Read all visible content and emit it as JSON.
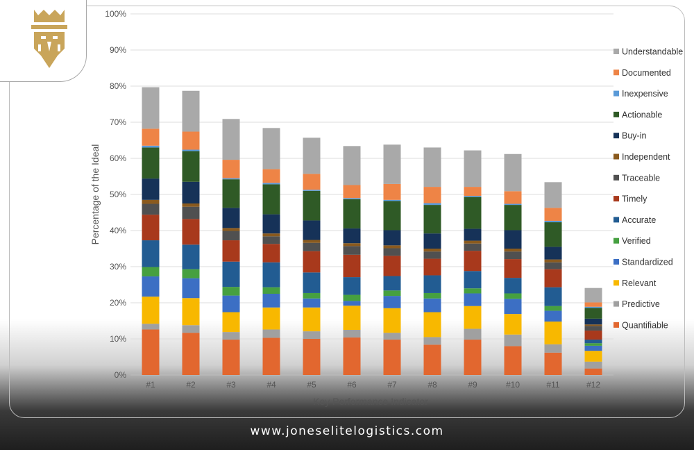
{
  "brand": {
    "website": "www.joneselitelogistics.com",
    "logo_icon": "lion-crown-logo-icon",
    "logo_color": "#c9a55a"
  },
  "chart_data": {
    "type": "bar",
    "stacked": true,
    "xlabel": "Key Performance Indicator",
    "ylabel": "Percentage of the Ideal",
    "ylim": [
      0,
      100
    ],
    "yticks": [
      "0%",
      "10%",
      "20%",
      "30%",
      "40%",
      "50%",
      "60%",
      "70%",
      "80%",
      "90%",
      "100%"
    ],
    "grid": true,
    "legend_position": "right",
    "categories": [
      "#1",
      "#2",
      "#3",
      "#4",
      "#5",
      "#6",
      "#7",
      "#8",
      "#9",
      "#10",
      "#11",
      "#12"
    ],
    "series": [
      {
        "name": "Quantifiable",
        "color": "#e2672f",
        "values": [
          12.6,
          11.7,
          9.8,
          10.3,
          10.0,
          10.4,
          9.8,
          8.4,
          9.8,
          8.0,
          6.2,
          1.8
        ]
      },
      {
        "name": "Predictive",
        "color": "#a0a0a0",
        "values": [
          1.6,
          2.1,
          2.1,
          2.3,
          2.1,
          2.1,
          1.9,
          2.1,
          3.0,
          3.2,
          2.3,
          1.9
        ]
      },
      {
        "name": "Relevant",
        "color": "#f8b800",
        "values": [
          7.5,
          7.5,
          5.5,
          6.1,
          6.6,
          6.7,
          6.8,
          6.9,
          6.3,
          5.7,
          6.3,
          3.0
        ]
      },
      {
        "name": "Standardized",
        "color": "#3c6fc4",
        "values": [
          5.6,
          5.5,
          4.6,
          3.8,
          2.5,
          1.3,
          3.4,
          3.8,
          3.5,
          4.2,
          3.0,
          1.4
        ]
      },
      {
        "name": "Verified",
        "color": "#46a040",
        "values": [
          2.6,
          2.5,
          2.4,
          1.8,
          1.5,
          1.7,
          1.5,
          1.5,
          1.4,
          1.5,
          1.3,
          0.7
        ]
      },
      {
        "name": "Accurate",
        "color": "#225c92",
        "values": [
          7.4,
          6.8,
          7.0,
          6.9,
          5.7,
          4.9,
          4.0,
          4.9,
          4.8,
          4.3,
          5.2,
          1.0
        ]
      },
      {
        "name": "Timely",
        "color": "#a8391c",
        "values": [
          7.1,
          7.1,
          5.9,
          5.1,
          5.9,
          6.2,
          5.6,
          4.6,
          5.6,
          5.2,
          5.0,
          2.5
        ]
      },
      {
        "name": "Traceable",
        "color": "#505050",
        "values": [
          3.0,
          3.4,
          2.6,
          2.1,
          2.3,
          2.4,
          2.1,
          2.0,
          2.0,
          2.1,
          1.9,
          1.3
        ]
      },
      {
        "name": "Independent",
        "color": "#8a5a1e",
        "values": [
          1.1,
          0.9,
          0.8,
          0.8,
          0.8,
          0.8,
          0.8,
          0.8,
          0.8,
          0.8,
          0.8,
          0.4
        ]
      },
      {
        "name": "Buy-in",
        "color": "#163258",
        "values": [
          5.9,
          6.0,
          5.6,
          5.3,
          5.4,
          4.1,
          4.2,
          4.2,
          3.3,
          5.1,
          3.5,
          1.6
        ]
      },
      {
        "name": "Actionable",
        "color": "#2f5a26",
        "values": [
          8.6,
          8.5,
          7.9,
          8.3,
          8.2,
          8.1,
          8.1,
          7.9,
          8.8,
          7.0,
          6.8,
          3.0
        ]
      },
      {
        "name": "Inexpensive",
        "color": "#5a9ad8",
        "values": [
          0.5,
          0.4,
          0.3,
          0.4,
          0.3,
          0.3,
          0.3,
          0.5,
          0.3,
          0.3,
          0.4,
          0.3
        ]
      },
      {
        "name": "Documented",
        "color": "#ee8446",
        "values": [
          4.7,
          5.0,
          5.1,
          3.8,
          4.4,
          3.6,
          4.4,
          4.5,
          2.5,
          3.5,
          3.6,
          1.2
        ]
      },
      {
        "name": "Understandable",
        "color": "#a9a9a9",
        "values": [
          11.5,
          11.3,
          11.3,
          11.4,
          10.0,
          10.8,
          10.9,
          10.9,
          10.1,
          10.3,
          7.1,
          4.0
        ]
      }
    ]
  }
}
